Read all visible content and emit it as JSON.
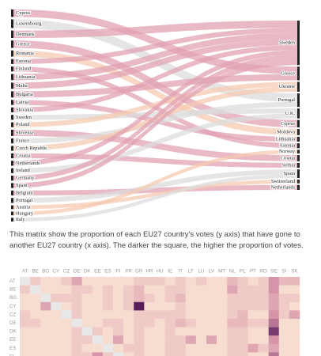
{
  "chart_data": [
    {
      "type": "sankey",
      "sources": [
        {
          "name": "Cyprus",
          "value": 12,
          "target": "Greece"
        },
        {
          "name": "Luxembourg",
          "value": 14,
          "target": "Portugal"
        },
        {
          "name": "Denmark",
          "value": 12,
          "target": "Sweden"
        },
        {
          "name": "Greece",
          "value": 12,
          "target": "Cyprus"
        },
        {
          "name": "Romania",
          "value": 10,
          "target": "Moldova"
        },
        {
          "name": "Estonia",
          "value": 8,
          "target": "Sweden"
        },
        {
          "name": "Finland",
          "value": 8,
          "target": "Estonia"
        },
        {
          "name": "Lithuania",
          "value": 10,
          "target": "Sweden"
        },
        {
          "name": "Malta",
          "value": 10,
          "target": "Sweden"
        },
        {
          "name": "Bulgaria",
          "value": 10,
          "target": "Greece"
        },
        {
          "name": "Latvia",
          "value": 8,
          "target": "Lithuania"
        },
        {
          "name": "Slovakia",
          "value": 8,
          "target": "Sweden"
        },
        {
          "name": "Sweden",
          "value": 8,
          "target": "U.K."
        },
        {
          "name": "Poland",
          "value": 8,
          "target": "Ukraine"
        },
        {
          "name": "Slovenia",
          "value": 10,
          "target": "Croatia"
        },
        {
          "name": "France",
          "value": 8,
          "target": "Portugal"
        },
        {
          "name": "Czech Republic",
          "value": 8,
          "target": "Ukraine"
        },
        {
          "name": "Croatia",
          "value": 8,
          "target": "Serbia"
        },
        {
          "name": "Netherlands",
          "value": 8,
          "target": "Sweden"
        },
        {
          "name": "Ireland",
          "value": 8,
          "target": "U.K."
        },
        {
          "name": "Germany",
          "value": 8,
          "target": "Sweden"
        },
        {
          "name": "Spain",
          "value": 8,
          "target": "Sweden"
        },
        {
          "name": "Belgium",
          "value": 8,
          "target": "Netherlands"
        },
        {
          "name": "Portugal",
          "value": 8,
          "target": "Spain"
        },
        {
          "name": "Austria",
          "value": 6,
          "target": "Switzerland"
        },
        {
          "name": "Hungary",
          "value": 6,
          "target": "Norway"
        },
        {
          "name": "Italy",
          "value": 6,
          "target": "Spain"
        }
      ],
      "targets": [
        {
          "name": "Sweden",
          "color": "#e2a1b3"
        },
        {
          "name": "Greece",
          "color": "#e2a1b3"
        },
        {
          "name": "Ukraine",
          "color": "#f5c9b0"
        },
        {
          "name": "Portugal",
          "color": "#dcdcdc"
        },
        {
          "name": "U.K.",
          "color": "#dcdcdc"
        },
        {
          "name": "Cyprus",
          "color": "#e2a1b3"
        },
        {
          "name": "Moldova",
          "color": "#f5c9b0"
        },
        {
          "name": "Lithuania",
          "color": "#e2a1b3"
        },
        {
          "name": "Estonia",
          "color": "#e2a1b3"
        },
        {
          "name": "Norway",
          "color": "#f5c9b0"
        },
        {
          "name": "Croatia",
          "color": "#e2a1b3"
        },
        {
          "name": "Serbia",
          "color": "#e2a1b3"
        },
        {
          "name": "Spain",
          "color": "#dcdcdc"
        },
        {
          "name": "Switzerland",
          "color": "#f5c9b0"
        },
        {
          "name": "Netherlands",
          "color": "#e2a1b3"
        }
      ]
    },
    {
      "type": "heatmap",
      "description": "This matrix show the proportion of each EU27 country's votes (y axis) that have gone to another EU27 country (x axis). The darker the square, the higher the proportion of votes.",
      "columns": [
        "AT",
        "BE",
        "BG",
        "CY",
        "CZ",
        "DE",
        "DK",
        "EE",
        "ES",
        "FI",
        "FR",
        "GR",
        "HR",
        "HU",
        "IE",
        "IT",
        "LT",
        "LU",
        "LV",
        "MT",
        "NL",
        "PL",
        "PT",
        "RO",
        "SE",
        "SI",
        "SK"
      ],
      "rows": [
        {
          "label": "AT",
          "values": [
            null,
            3,
            2,
            2,
            3,
            5,
            2,
            2,
            2,
            2,
            2,
            3,
            3,
            3,
            2,
            3,
            2,
            3,
            2,
            2,
            4,
            3,
            2,
            3,
            6,
            4,
            4
          ]
        },
        {
          "label": "BE",
          "values": [
            3,
            null,
            2,
            2,
            2,
            3,
            3,
            2,
            3,
            2,
            3,
            4,
            2,
            2,
            3,
            3,
            2,
            2,
            2,
            2,
            5,
            3,
            3,
            3,
            6,
            2,
            2
          ]
        },
        {
          "label": "BG",
          "values": [
            2,
            2,
            null,
            3,
            3,
            3,
            2,
            2,
            3,
            2,
            3,
            4,
            3,
            2,
            3,
            4,
            2,
            2,
            2,
            2,
            3,
            3,
            3,
            3,
            5,
            3,
            3
          ]
        },
        {
          "label": "CY",
          "values": [
            2,
            2,
            5,
            null,
            2,
            3,
            2,
            2,
            3,
            2,
            3,
            10,
            2,
            2,
            2,
            3,
            2,
            2,
            2,
            2,
            3,
            3,
            3,
            3,
            5,
            3,
            2
          ]
        },
        {
          "label": "CZ",
          "values": [
            3,
            2,
            2,
            2,
            null,
            3,
            2,
            2,
            2,
            2,
            2,
            3,
            3,
            3,
            3,
            3,
            2,
            2,
            2,
            2,
            3,
            4,
            2,
            2,
            6,
            3,
            5
          ]
        },
        {
          "label": "DE",
          "values": [
            3,
            3,
            2,
            2,
            2,
            null,
            2,
            2,
            3,
            3,
            2,
            3,
            3,
            2,
            3,
            4,
            3,
            2,
            2,
            2,
            4,
            4,
            3,
            3,
            7,
            2,
            2
          ]
        },
        {
          "label": "DK",
          "values": [
            2,
            2,
            2,
            2,
            2,
            3,
            null,
            3,
            2,
            3,
            2,
            3,
            2,
            2,
            3,
            2,
            2,
            2,
            2,
            2,
            3,
            3,
            2,
            2,
            9,
            2,
            2
          ]
        },
        {
          "label": "EE",
          "values": [
            2,
            2,
            2,
            2,
            2,
            3,
            3,
            null,
            2,
            5,
            2,
            3,
            2,
            2,
            3,
            3,
            5,
            2,
            5,
            2,
            3,
            3,
            2,
            2,
            6,
            2,
            2
          ]
        },
        {
          "label": "ES",
          "values": [
            2,
            2,
            2,
            2,
            2,
            3,
            2,
            2,
            null,
            2,
            3,
            3,
            2,
            2,
            3,
            3,
            2,
            2,
            2,
            2,
            3,
            3,
            5,
            3,
            5,
            2,
            2
          ]
        },
        {
          "label": "FI",
          "values": [
            2,
            2,
            2,
            2,
            2,
            3,
            3,
            6,
            3,
            null,
            2,
            3,
            2,
            2,
            3,
            3,
            2,
            2,
            2,
            2,
            3,
            3,
            2,
            2,
            7,
            2,
            2
          ]
        }
      ]
    }
  ]
}
